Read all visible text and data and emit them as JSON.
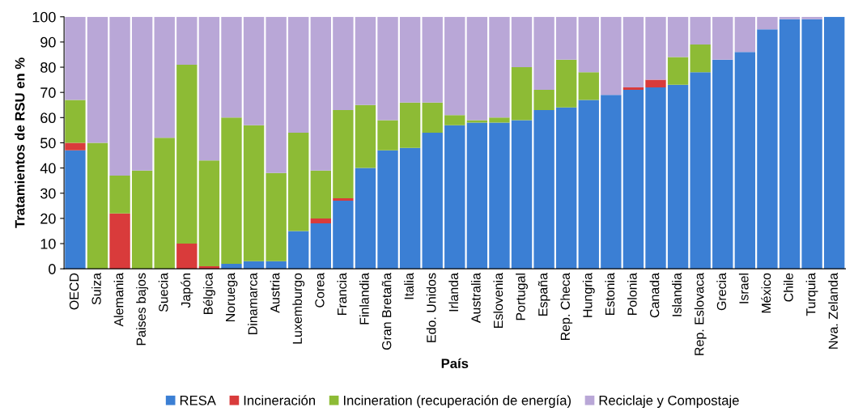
{
  "chart_data": {
    "type": "bar",
    "stacked": true,
    "xlabel": "País",
    "ylabel": "Tratamientos de RSU en %",
    "categories": [
      "OECD",
      "Suiza",
      "Alemania",
      "Paises bajos",
      "Suecia",
      "Japón",
      "Bélgica",
      "Noruega",
      "Dinamarca",
      "Austria",
      "Luxemburgo",
      "Corea",
      "Francia",
      "Finlandia",
      "Gran Bretaña",
      "Italia",
      "Edo. Unidos",
      "Irlanda",
      "Australia",
      "Eslovenia",
      "Portugal",
      "España",
      "Rep. Checa",
      "Hungria",
      "Estonia",
      "Polonia",
      "Canada",
      "Islandia",
      "Rep. Eslovaca",
      "Grecia",
      "Israel",
      "México",
      "Chile",
      "Turquia",
      "Nva. Zelanda"
    ],
    "series": [
      {
        "name": "RESA",
        "color": "#3b7fd4",
        "values": [
          47,
          0,
          0,
          0,
          0,
          0,
          0,
          2,
          3,
          3,
          15,
          18,
          27,
          40,
          47,
          48,
          54,
          57,
          58,
          58,
          59,
          63,
          64,
          67,
          69,
          71,
          72,
          73,
          78,
          83,
          86,
          95,
          99,
          99,
          100
        ]
      },
      {
        "name": "Incineración",
        "color": "#d93b3b",
        "values": [
          3,
          0,
          22,
          0,
          0,
          10,
          1,
          0,
          0,
          0,
          0,
          2,
          1,
          0,
          0,
          0,
          0,
          0,
          0,
          0,
          0,
          0,
          0,
          0,
          0,
          1,
          3,
          0,
          0,
          0,
          0,
          0,
          0,
          0,
          0
        ]
      },
      {
        "name": "Incineration (recuperación de energía)",
        "color": "#8dbb35",
        "values": [
          17,
          50,
          15,
          39,
          52,
          71,
          42,
          58,
          54,
          35,
          39,
          19,
          35,
          25,
          12,
          18,
          12,
          4,
          1,
          2,
          21,
          8,
          19,
          11,
          0,
          0,
          0,
          11,
          11,
          0,
          0,
          0,
          0,
          0,
          0
        ]
      },
      {
        "name": "Reciclaje y Compostaje",
        "color": "#b9a7d7",
        "values": [
          33,
          50,
          63,
          61,
          48,
          19,
          57,
          40,
          43,
          62,
          46,
          61,
          37,
          35,
          41,
          34,
          34,
          39,
          41,
          40,
          20,
          29,
          17,
          22,
          31,
          28,
          25,
          16,
          11,
          17,
          14,
          5,
          1,
          1,
          0
        ]
      }
    ],
    "ylim": [
      0,
      100
    ],
    "yticks": [
      0,
      10,
      20,
      30,
      40,
      50,
      60,
      70,
      80,
      90,
      100
    ],
    "grid": false,
    "legend": "bottom"
  }
}
